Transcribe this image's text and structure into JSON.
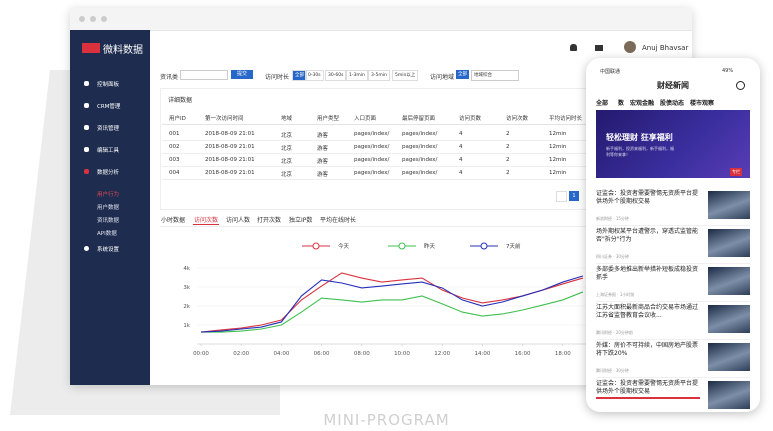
{
  "window": {
    "logo": "微料数据",
    "user": "Anuj Bhavsar"
  },
  "sidebar": {
    "menu": [
      "控制面板",
      "CRM管理",
      "资讯管理",
      "编辑工具",
      "数据分析"
    ],
    "submenu": [
      "用户行为",
      "用户数据",
      "资讯数据",
      "API数据"
    ],
    "settings": "系统设置"
  },
  "filters": {
    "category_label": "资讯类",
    "submit": "提交",
    "duration_label": "访问时长",
    "duration_options": [
      "全部",
      "0-30s",
      "30-60s",
      "1-3min",
      "3-5min",
      "5min以上"
    ],
    "region_label": "访问地域",
    "region_all": "全部",
    "region_select": "地域综合"
  },
  "table": {
    "title": "详细数据",
    "headers": [
      "用户ID",
      "第一次访问时间",
      "地域",
      "用户类型",
      "入口页面",
      "最后停留页面",
      "访问页数",
      "访问次数",
      "平均访问时长"
    ],
    "rows": [
      [
        "001",
        "2018-08-09  21:01",
        "北京",
        "游客",
        "pages/index/",
        "pages/index/",
        "4",
        "2",
        "12min"
      ],
      [
        "002",
        "2018-08-09  21:01",
        "北京",
        "游客",
        "pages/index/",
        "pages/index/",
        "4",
        "2",
        "12min"
      ],
      [
        "003",
        "2018-08-09  21:01",
        "北京",
        "游客",
        "pages/index/",
        "pages/index/",
        "4",
        "2",
        "12min"
      ],
      [
        "004",
        "2018-08-09  21:01",
        "北京",
        "游客",
        "pages/index/",
        "pages/index/",
        "4",
        "2",
        "12min"
      ]
    ],
    "page": "1"
  },
  "chart": {
    "type": "line",
    "tabs": [
      "小时数据",
      "访问次数",
      "访问人数",
      "打开次数",
      "独立IP数",
      "平均在线时长"
    ],
    "categories": [
      "00:00",
      null,
      "02:00",
      null,
      "04:00",
      null,
      "06:00",
      null,
      "08:00",
      null,
      "10:00",
      null,
      "12:00",
      null,
      "14:00",
      null,
      "16:00",
      null,
      "18:00",
      null
    ],
    "series": [
      {
        "name": "今天",
        "color": "#d9323e",
        "values": [
          630,
          740,
          840,
          1000,
          1260,
          2320,
          3050,
          3740,
          3470,
          3260,
          3370,
          3470,
          2840,
          2420,
          2160,
          2320,
          2530,
          2840,
          3160,
          3470
        ]
      },
      {
        "name": "昨天",
        "color": "#3fc04f",
        "values": [
          630,
          630,
          680,
          790,
          1000,
          1680,
          2420,
          2320,
          2210,
          2320,
          2320,
          2530,
          2110,
          1680,
          1470,
          1580,
          1790,
          2050,
          2320,
          2740
        ]
      },
      {
        "name": "7天前",
        "color": "#2430b8",
        "values": [
          630,
          680,
          790,
          890,
          1160,
          2530,
          3370,
          3210,
          2950,
          3050,
          3160,
          3260,
          2950,
          2320,
          2000,
          2210,
          2530,
          2840,
          3260,
          3580
        ]
      }
    ],
    "ylim": [
      0,
      4000
    ],
    "yticks": [
      {
        "value": 1000,
        "label": "1k"
      },
      {
        "value": 2000,
        "label": "2k"
      },
      {
        "value": 3000,
        "label": "3k"
      },
      {
        "value": 4000,
        "label": "4k"
      }
    ]
  },
  "phone": {
    "carrier": "中国联通",
    "battery": "49%",
    "title": "财经新闻",
    "tabs": [
      "全部",
      "数",
      "宏观金融",
      "股债动态",
      "楼市观察"
    ],
    "banner": {
      "title": "轻松理财 狂享福利",
      "text": "新手福利，投资来福利，新手福利，福利等你来拿！",
      "tag": "专栏"
    },
    "news": [
      {
        "title": "证监会：投资者需要警惕无资质平台提供场外个股期权交易",
        "source": "新浪财经 · 15分钟"
      },
      {
        "title": "场外期权某平台遭警示，穿透式监管能否\"拆分\"行为",
        "source": "四川证券 · 30分钟"
      },
      {
        "title": "多部委多地推出新举措补短板成稳投资抓手",
        "source": "上海证券报 · 1小时前"
      },
      {
        "title": "江苏大面积最新商品合约交易市场通过江苏省监督教育会议收...",
        "source": "腾讯财经 · 20分钟前"
      },
      {
        "title": "外媒：房价不可持续，中国房地产股票将下跌20%",
        "source": "腾讯财经 · 30分钟"
      },
      {
        "title": "证监会：投资者需要警惕无资质平台提供场外个股期权交易",
        "source": ""
      }
    ]
  },
  "footer": "MINI-PROGRAM"
}
